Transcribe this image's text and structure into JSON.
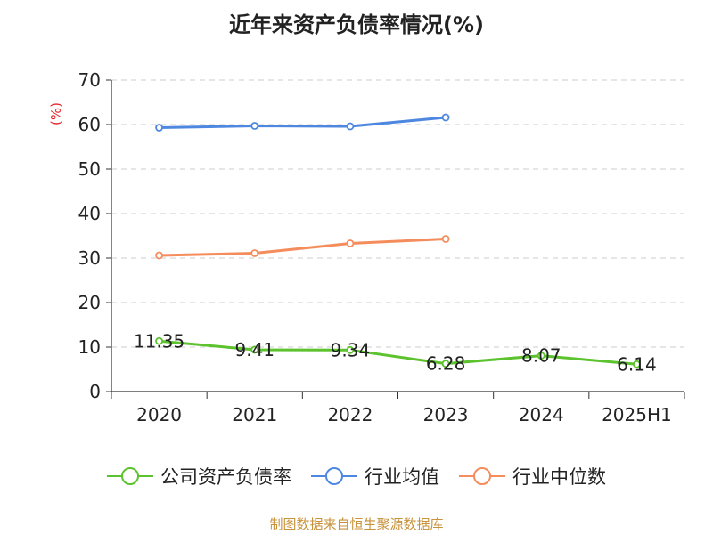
{
  "title": "近年来资产负债率情况(%)",
  "source": "制图数据来自恒生聚源数据库",
  "chart_data": {
    "type": "line",
    "title": "近年来资产负债率情况(%)",
    "ylabel": "(%)",
    "xlabel": "",
    "categories": [
      "2020",
      "2021",
      "2022",
      "2023",
      "2024",
      "2025H1"
    ],
    "ylim": [
      0,
      70
    ],
    "yticks": [
      0,
      10,
      20,
      30,
      40,
      50,
      60,
      70
    ],
    "grid": true,
    "legend_position": "bottom",
    "series": [
      {
        "name": "公司资产负债率",
        "color": "#5cc22e",
        "values": [
          11.35,
          9.41,
          9.34,
          6.28,
          8.07,
          6.14
        ],
        "labels": [
          "11.35",
          "9.41",
          "9.34",
          "6.28",
          "8.07",
          "6.14"
        ],
        "show_labels": true
      },
      {
        "name": "行业均值",
        "color": "#4e87e0",
        "values": [
          59.3,
          59.7,
          59.6,
          61.6,
          null,
          null
        ],
        "show_labels": false
      },
      {
        "name": "行业中位数",
        "color": "#f58c5c",
        "values": [
          30.6,
          31.1,
          33.3,
          34.3,
          null,
          null
        ],
        "show_labels": false
      }
    ]
  }
}
